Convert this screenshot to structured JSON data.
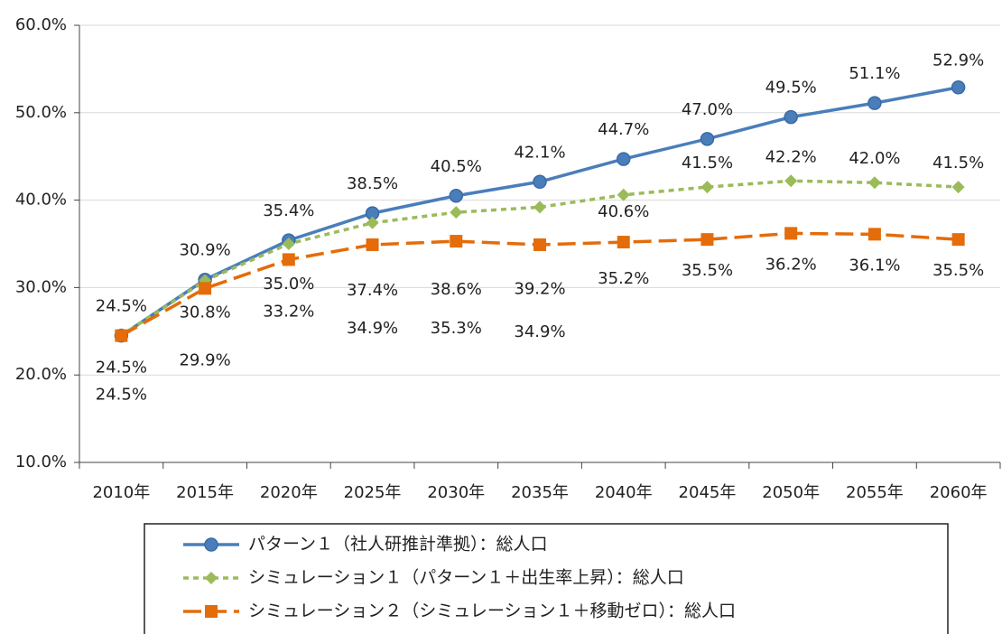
{
  "chart_data": {
    "type": "line",
    "categories": [
      "2010年",
      "2015年",
      "2020年",
      "2025年",
      "2030年",
      "2035年",
      "2040年",
      "2045年",
      "2050年",
      "2055年",
      "2060年"
    ],
    "series": [
      {
        "name": "パターン１（社人研推計準拠）：総人口",
        "color": "#4a7ebb",
        "marker": "circle",
        "dash": "solid",
        "values": [
          24.5,
          30.9,
          35.4,
          38.5,
          40.5,
          42.1,
          44.7,
          47.0,
          49.5,
          51.1,
          52.9
        ],
        "value_labels": [
          "24.5%",
          "30.9%",
          "35.4%",
          "38.5%",
          "40.5%",
          "42.1%",
          "44.7%",
          "47.0%",
          "49.5%",
          "51.1%",
          "52.9%"
        ]
      },
      {
        "name": "シミュレーション１（パターン１＋出生率上昇）：総人口",
        "color": "#9bbb59",
        "marker": "diamond",
        "dash": "short",
        "values": [
          24.5,
          30.8,
          35.0,
          37.4,
          38.6,
          39.2,
          40.6,
          41.5,
          42.2,
          42.0,
          41.5
        ],
        "value_labels": [
          "24.5%",
          "30.8%",
          "35.0%",
          "37.4%",
          "38.6%",
          "39.2%",
          "40.6%",
          "41.5%",
          "42.2%",
          "42.0%",
          "41.5%"
        ]
      },
      {
        "name": "シミュレーション２（シミュレーション１＋移動ゼロ）：総人口",
        "color": "#e46c0a",
        "marker": "square",
        "dash": "long",
        "values": [
          24.5,
          29.9,
          33.2,
          34.9,
          35.3,
          34.9,
          35.2,
          35.5,
          36.2,
          36.1,
          35.5
        ],
        "value_labels": [
          "24.5%",
          "29.9%",
          "33.2%",
          "34.9%",
          "35.3%",
          "34.9%",
          "35.2%",
          "35.5%",
          "36.2%",
          "36.1%",
          "35.5%"
        ]
      }
    ],
    "ylim": [
      10,
      60
    ],
    "yticks": [
      {
        "value": 10,
        "label": "10.0%"
      },
      {
        "value": 20,
        "label": "20.0%"
      },
      {
        "value": 30,
        "label": "30.0%"
      },
      {
        "value": 40,
        "label": "40.0%"
      },
      {
        "value": 50,
        "label": "50.0%"
      },
      {
        "value": 60,
        "label": "60.0%"
      }
    ],
    "grid": true,
    "legend": "bottom"
  }
}
